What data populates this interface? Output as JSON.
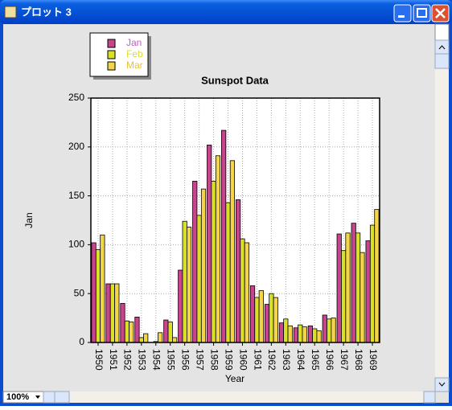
{
  "window": {
    "title": "プロット 3"
  },
  "zoom": "100%",
  "chart_data": {
    "type": "bar",
    "title": "Sunspot Data",
    "x_label": "Year",
    "y_label": "Jan",
    "categories": [
      "1950",
      "1951",
      "1952",
      "1953",
      "1954",
      "1955",
      "1956",
      "1957",
      "1958",
      "1959",
      "1960",
      "1961",
      "1962",
      "1963",
      "1964",
      "1965",
      "1966",
      "1967",
      "1968",
      "1969"
    ],
    "series": [
      {
        "name": "Jan",
        "color": "#c8448c",
        "legend_color": "#c060c0",
        "values": [
          102,
          60,
          40,
          26,
          0,
          23,
          74,
          165,
          202,
          217,
          146,
          58,
          39,
          20,
          15,
          17,
          28,
          111,
          122,
          104
        ]
      },
      {
        "name": "Feb",
        "color": "#d8e028",
        "legend_color": "#d8dc40",
        "values": [
          95,
          60,
          22,
          5,
          1,
          21,
          124,
          130,
          165,
          143,
          106,
          46,
          50,
          24,
          18,
          14,
          24,
          94,
          112,
          120
        ]
      },
      {
        "name": "Mar",
        "color": "#f4d448",
        "legend_color": "#e8c040",
        "values": [
          110,
          60,
          21,
          9,
          10,
          5,
          118,
          157,
          191,
          186,
          102,
          53,
          46,
          17,
          16,
          12,
          25,
          112,
          92,
          136
        ]
      }
    ],
    "ylim": [
      0,
      250
    ],
    "yticks": [
      0,
      50,
      100,
      150,
      200,
      250
    ],
    "grid": true
  }
}
